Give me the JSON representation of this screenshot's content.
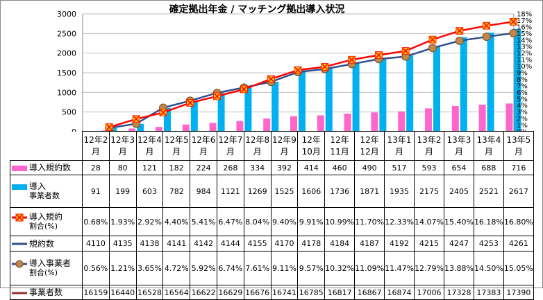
{
  "chart_data": {
    "type": "bar+line",
    "title": "確定拠出年金 / マッチング拠出導入状況",
    "categories": [
      "12年2月",
      "12年3月",
      "12年4月",
      "12年5月",
      "12年6月",
      "12年7月",
      "12年8月",
      "12年9月",
      "12年10月",
      "12年11月",
      "12年12月",
      "13年1月",
      "13年2月",
      "13年3月",
      "13年4月",
      "13年5月"
    ],
    "category_lines": [
      [
        "12年2",
        "月"
      ],
      [
        "12年3",
        "月"
      ],
      [
        "12年4",
        "月"
      ],
      [
        "12年5",
        "月"
      ],
      [
        "12年6",
        "月"
      ],
      [
        "12年7",
        "月"
      ],
      [
        "12年8",
        "月"
      ],
      [
        "12年9",
        "月"
      ],
      [
        "12年",
        "10月"
      ],
      [
        "12年",
        "11月"
      ],
      [
        "12年",
        "12月"
      ],
      [
        "13年1",
        "月"
      ],
      [
        "13年2",
        "月"
      ],
      [
        "13年3",
        "月"
      ],
      [
        "13年4",
        "月"
      ],
      [
        "13年5",
        "月"
      ]
    ],
    "left_axis": {
      "min": 0,
      "max": 3000,
      "step": 500,
      "ticks": [
        "0",
        "500",
        "1000",
        "1500",
        "2000",
        "2500",
        "3000"
      ]
    },
    "right_axis": {
      "min": 0,
      "max": 18,
      "step": 1,
      "ticks": [
        "0%",
        "1%",
        "2%",
        "3%",
        "4%",
        "5%",
        "6%",
        "7%",
        "8%",
        "9%",
        "10%",
        "11%",
        "12%",
        "13%",
        "14%",
        "15%",
        "16%",
        "17%",
        "18%"
      ]
    },
    "series": [
      {
        "name": "導入規約数",
        "kind": "bar",
        "axis": "left",
        "color": "#FF66CC",
        "values": [
          28,
          80,
          121,
          182,
          224,
          268,
          334,
          392,
          414,
          460,
          490,
          517,
          593,
          654,
          688,
          716
        ]
      },
      {
        "name": "導入事業者数",
        "kind": "bar",
        "axis": "left",
        "color": "#00B0F0",
        "values": [
          91,
          199,
          603,
          782,
          984,
          1121,
          1269,
          1525,
          1606,
          1736,
          1871,
          1935,
          2175,
          2405,
          2521,
          2617
        ]
      },
      {
        "name": "導入規約割合",
        "kind": "line",
        "axis": "right",
        "color": "#FF0000",
        "marker": "star",
        "marker_color": "#FFC000",
        "values": [
          0.68,
          1.93,
          2.92,
          4.4,
          5.41,
          6.47,
          8.04,
          9.4,
          9.91,
          10.99,
          11.7,
          12.33,
          14.07,
          15.4,
          16.18,
          16.8
        ]
      },
      {
        "name": "規約数",
        "kind": "table-only",
        "color": "#2F4F8F",
        "values": [
          4110,
          4135,
          4138,
          4141,
          4142,
          4144,
          4155,
          4170,
          4178,
          4184,
          4187,
          4192,
          4215,
          4247,
          4253,
          4261
        ]
      },
      {
        "name": "導入事業者割合",
        "kind": "line",
        "axis": "right",
        "color": "#2F4F8F",
        "marker": "circle",
        "marker_color": "#C0864A",
        "values": [
          0.56,
          1.21,
          3.65,
          4.72,
          5.92,
          6.74,
          7.61,
          9.11,
          9.57,
          10.32,
          11.09,
          11.47,
          12.79,
          13.88,
          14.5,
          15.05
        ]
      },
      {
        "name": "事業者数",
        "kind": "table-only",
        "color": "#8B2E2E",
        "values": [
          16159,
          16440,
          16528,
          16564,
          16622,
          16629,
          16676,
          16741,
          16785,
          16817,
          16867,
          16874,
          17006,
          17328,
          17383,
          17390
        ]
      }
    ]
  },
  "table": {
    "rows": [
      {
        "label": "導入規約数",
        "sub": "",
        "cells": [
          "28",
          "80",
          "121",
          "182",
          "224",
          "268",
          "334",
          "392",
          "414",
          "460",
          "490",
          "517",
          "593",
          "654",
          "688",
          "716"
        ]
      },
      {
        "label": "導入",
        "sub": "事業者数",
        "cells": [
          "91",
          "199",
          "603",
          "782",
          "984",
          "1121",
          "1269",
          "1525",
          "1606",
          "1736",
          "1871",
          "1935",
          "2175",
          "2405",
          "2521",
          "2617"
        ]
      },
      {
        "label": "導入規約",
        "sub": "割合(%)",
        "cells": [
          "0.68%",
          "1.93%",
          "2.92%",
          "4.40%",
          "5.41%",
          "6.47%",
          "8.04%",
          "9.40%",
          "9.91%",
          "10.99%",
          "11.70%",
          "12.33%",
          "14.07%",
          "15.40%",
          "16.18%",
          "16.80%"
        ]
      },
      {
        "label": "規約数",
        "sub": "",
        "cells": [
          "4110",
          "4135",
          "4138",
          "4141",
          "4142",
          "4144",
          "4155",
          "4170",
          "4178",
          "4184",
          "4187",
          "4192",
          "4215",
          "4247",
          "4253",
          "4261"
        ]
      },
      {
        "label": "導入事業者",
        "sub": "割合(%)",
        "cells": [
          "0.56%",
          "1.21%",
          "3.65%",
          "4.72%",
          "5.92%",
          "6.74%",
          "7.61%",
          "9.11%",
          "9.57%",
          "10.32%",
          "11.09%",
          "11.47%",
          "12.79%",
          "13.88%",
          "14.50%",
          "15.05%"
        ]
      },
      {
        "label": "事業者数",
        "sub": "",
        "cells": [
          "16159",
          "16440",
          "16528",
          "16564",
          "16622",
          "16629",
          "16676",
          "16741",
          "16785",
          "16817",
          "16867",
          "16874",
          "17006",
          "17328",
          "17383",
          "17390"
        ]
      }
    ]
  }
}
